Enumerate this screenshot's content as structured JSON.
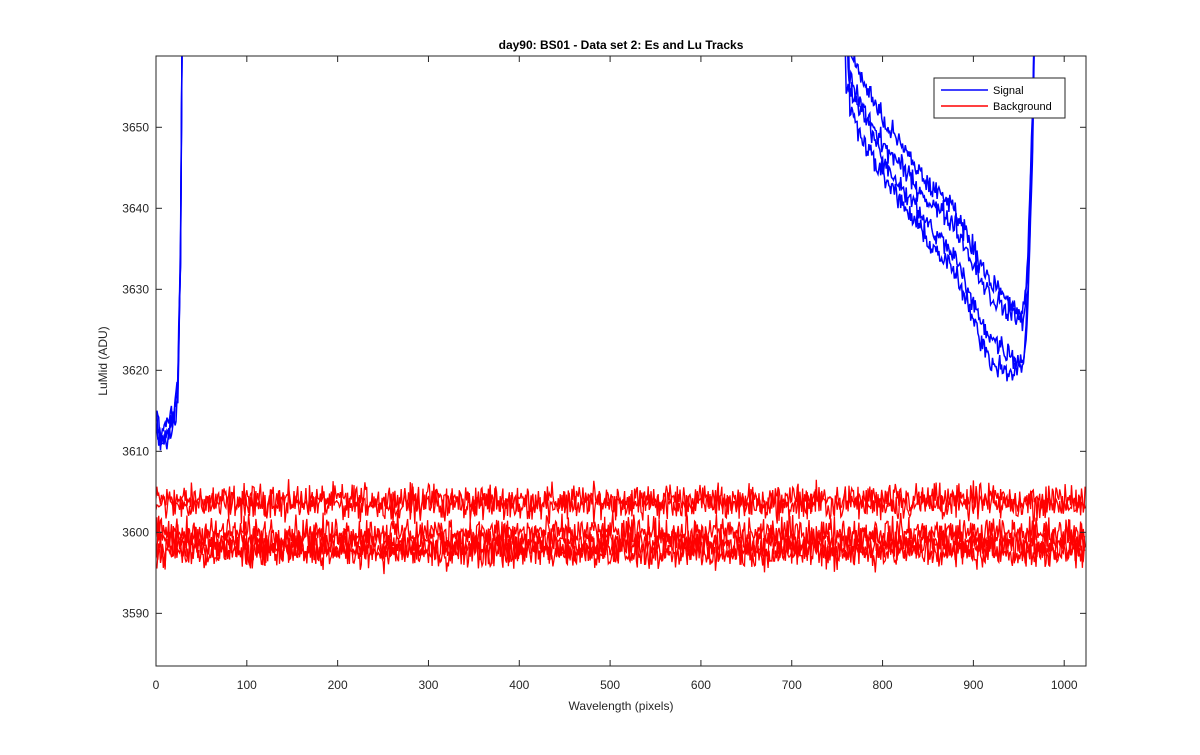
{
  "chart_data": {
    "type": "line",
    "title": "day90: BS01 - Data set 2: Es and Lu Tracks",
    "xlabel": "Wavelength (pixels)",
    "ylabel": "LuMid (ADU)",
    "xlim": [
      0,
      1024
    ],
    "ylim": [
      3583.5,
      3658.8
    ],
    "xticks": [
      0,
      100,
      200,
      300,
      400,
      500,
      600,
      700,
      800,
      900,
      1000
    ],
    "yticks": [
      3590,
      3600,
      3610,
      3620,
      3630,
      3640,
      3650
    ],
    "grid": false,
    "legend_position": "top-right",
    "colors": {
      "signal": "#0000ff",
      "background": "#ff0000"
    },
    "legend": [
      {
        "label": "Signal",
        "color": "#0000ff"
      },
      {
        "label": "Background",
        "color": "#ff0000"
      }
    ],
    "series": [
      {
        "name": "Signal",
        "color": "#0000ff",
        "traces": [
          [
            [
              0,
              3616
            ],
            [
              5,
              3611
            ],
            [
              10,
              3613
            ],
            [
              15,
              3614
            ],
            [
              20,
              3615
            ],
            [
              24,
              3619
            ],
            [
              27,
              3635
            ],
            [
              30,
              3680
            ],
            [
              700,
              3700
            ],
            [
              750,
              3700
            ],
            [
              760,
              3655
            ],
            [
              800,
              3648
            ],
            [
              850,
              3641
            ],
            [
              880,
              3638
            ],
            [
              900,
              3633
            ],
            [
              920,
              3629
            ],
            [
              940,
              3627
            ],
            [
              955,
              3626
            ],
            [
              960,
              3633
            ],
            [
              965,
              3650
            ],
            [
              970,
              3680
            ]
          ],
          [
            [
              0,
              3614
            ],
            [
              5,
              3612
            ],
            [
              10,
              3612
            ],
            [
              15,
              3613
            ],
            [
              20,
              3614
            ],
            [
              24,
              3618
            ],
            [
              27,
              3634
            ],
            [
              30,
              3680
            ],
            [
              700,
              3700
            ],
            [
              752,
              3700
            ],
            [
              760,
              3660
            ],
            [
              800,
              3651
            ],
            [
              850,
              3643
            ],
            [
              880,
              3640
            ],
            [
              900,
              3635
            ],
            [
              920,
              3631
            ],
            [
              940,
              3628
            ],
            [
              955,
              3627
            ],
            [
              960,
              3634
            ],
            [
              965,
              3651
            ],
            [
              970,
              3680
            ]
          ],
          [
            [
              0,
              3613
            ],
            [
              5,
              3611
            ],
            [
              10,
              3611
            ],
            [
              15,
              3612
            ],
            [
              20,
              3613
            ],
            [
              24,
              3617
            ],
            [
              27,
              3633
            ],
            [
              30,
              3680
            ],
            [
              700,
              3700
            ],
            [
              754,
              3700
            ],
            [
              762,
              3657
            ],
            [
              800,
              3646
            ],
            [
              850,
              3638
            ],
            [
              880,
              3634
            ],
            [
              900,
              3628
            ],
            [
              920,
              3624
            ],
            [
              940,
              3622
            ],
            [
              955,
              3621
            ],
            [
              960,
              3630
            ],
            [
              965,
              3648
            ],
            [
              970,
              3680
            ]
          ],
          [
            [
              0,
              3613
            ],
            [
              5,
              3611
            ],
            [
              10,
              3612
            ],
            [
              15,
              3613
            ],
            [
              20,
              3614
            ],
            [
              24,
              3618
            ],
            [
              27,
              3634
            ],
            [
              30,
              3680
            ],
            [
              700,
              3700
            ],
            [
              756,
              3700
            ],
            [
              764,
              3652
            ],
            [
              800,
              3644
            ],
            [
              850,
              3636
            ],
            [
              880,
              3632
            ],
            [
              900,
              3626
            ],
            [
              920,
              3621
            ],
            [
              940,
              3620
            ],
            [
              955,
              3620
            ],
            [
              960,
              3628
            ],
            [
              965,
              3646
            ],
            [
              970,
              3680
            ]
          ]
        ]
      },
      {
        "name": "Background",
        "color": "#ff0000",
        "levels": [
          3604,
          3603.5,
          3600,
          3599,
          3597.5,
          3598
        ],
        "noise": 1.2,
        "points_per_trace": 1024
      }
    ]
  }
}
